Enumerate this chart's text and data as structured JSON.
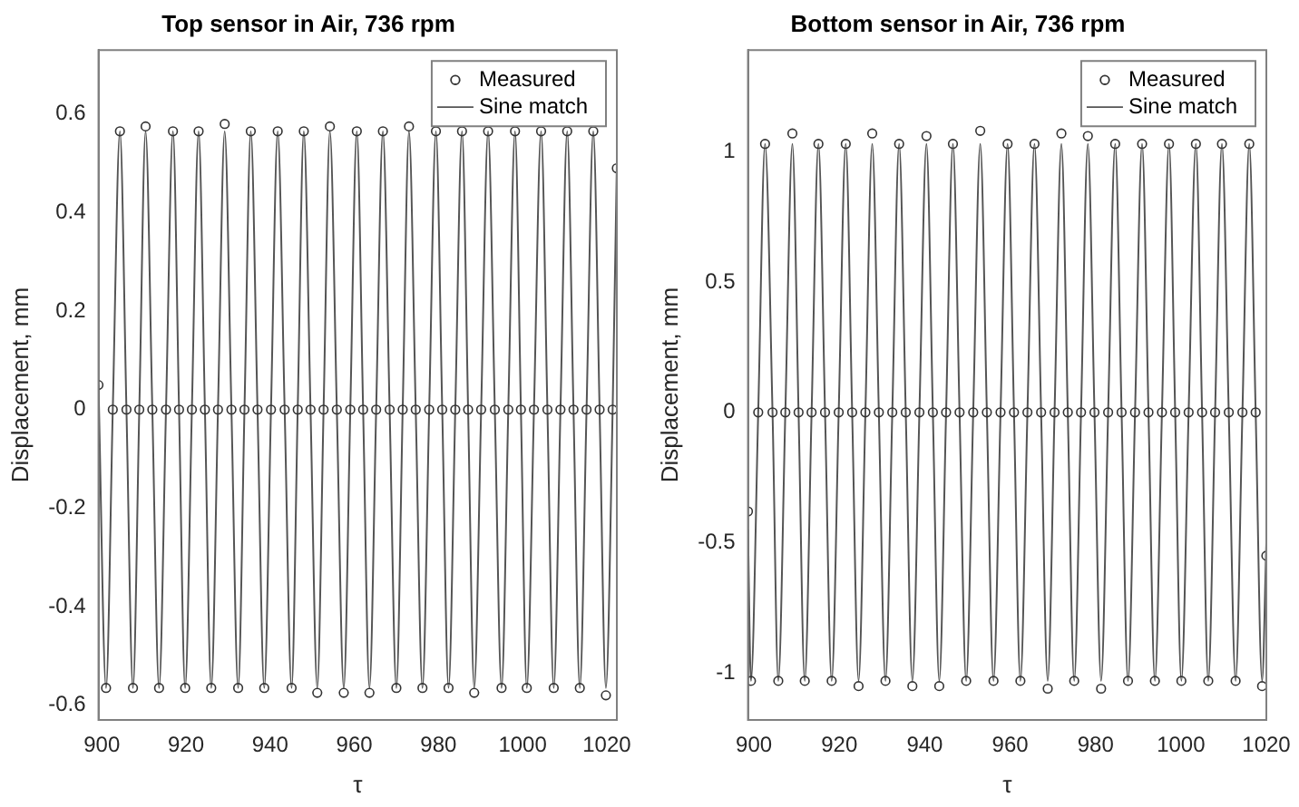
{
  "chart_data": [
    {
      "type": "line",
      "title": "Top sensor in Air, 736 rpm",
      "xlabel": "τ",
      "ylabel": "Displacement, mm",
      "xlim": [
        899.2,
        1022.4
      ],
      "xticks": [
        900,
        920,
        940,
        960,
        980,
        1000,
        1020
      ],
      "ylim": [
        -0.63,
        0.73
      ],
      "yticks": [
        -0.6,
        -0.4,
        -0.2,
        0,
        0.2,
        0.4,
        0.6
      ],
      "grid": false,
      "legend": "top right",
      "x": [
        899.2,
        901.0,
        902.6,
        904.3,
        905.85,
        907.4,
        908.9,
        910.4,
        912.0,
        913.6,
        915.25,
        916.9,
        918.35,
        919.8,
        921.4,
        923.0,
        924.5,
        926.0,
        927.6,
        929.2,
        930.8,
        932.4,
        933.9,
        935.4,
        937.0,
        938.6,
        940.2,
        941.8,
        943.45,
        945.1,
        946.55,
        948.0,
        949.6,
        951.2,
        952.7,
        954.2,
        955.85,
        957.5,
        959.05,
        960.6,
        962.1,
        963.6,
        965.2,
        966.8,
        968.4,
        970.0,
        971.5,
        973.0,
        974.6,
        976.2,
        977.8,
        979.4,
        980.9,
        982.4,
        984.0,
        985.6,
        987.05,
        988.5,
        990.15,
        991.8,
        993.4,
        995.0,
        996.6,
        998.2,
        999.6,
        1001.0,
        1002.7,
        1004.4,
        1005.9,
        1007.4,
        1009.0,
        1010.6,
        1012.1,
        1013.6,
        1015.2,
        1016.8,
        1018.3,
        1019.8,
        1021.4,
        1022.4
      ],
      "series": [
        {
          "name": "Measured",
          "type": "scatter",
          "marker": "circle",
          "color": "#333333",
          "values": [
            0.05,
            -0.565,
            0,
            0.565,
            0,
            -0.565,
            0,
            0.575,
            0,
            -0.565,
            0,
            0.565,
            0,
            -0.565,
            0,
            0.565,
            0,
            -0.565,
            0,
            0.58,
            0,
            -0.565,
            0,
            0.565,
            0,
            -0.565,
            0,
            0.565,
            0,
            -0.565,
            0,
            0.565,
            0,
            -0.575,
            0,
            0.575,
            0,
            -0.575,
            0,
            0.565,
            0,
            -0.575,
            0,
            0.565,
            0,
            -0.565,
            0,
            0.575,
            0,
            -0.565,
            0,
            0.565,
            0,
            -0.565,
            0,
            0.565,
            0,
            -0.575,
            0,
            0.565,
            0,
            -0.565,
            0,
            0.565,
            0,
            -0.565,
            0,
            0.565,
            0,
            -0.565,
            0,
            0.565,
            0,
            -0.565,
            0,
            0.565,
            0,
            -0.58,
            0,
            0.49
          ]
        },
        {
          "name": "Sine match",
          "type": "line",
          "marker": "none",
          "line_style": "solid",
          "color": "#555555",
          "values": [
            0.05,
            -0.565,
            0,
            0.565,
            0,
            -0.565,
            0,
            0.565,
            0,
            -0.565,
            0,
            0.565,
            0,
            -0.565,
            0,
            0.565,
            0,
            -0.565,
            0,
            0.565,
            0,
            -0.565,
            0,
            0.565,
            0,
            -0.565,
            0,
            0.565,
            0,
            -0.565,
            0,
            0.565,
            0,
            -0.565,
            0,
            0.565,
            0,
            -0.565,
            0,
            0.565,
            0,
            -0.565,
            0,
            0.565,
            0,
            -0.565,
            0,
            0.565,
            0,
            -0.565,
            0,
            0.565,
            0,
            -0.565,
            0,
            0.565,
            0,
            -0.565,
            0,
            0.565,
            0,
            -0.565,
            0,
            0.565,
            0,
            -0.565,
            0,
            0.565,
            0,
            -0.565,
            0,
            0.565,
            0,
            -0.565,
            0,
            0.565,
            0,
            -0.565,
            0,
            0.5
          ]
        }
      ]
    },
    {
      "type": "line",
      "title": "Bottom sensor in Air, 736 rpm",
      "xlabel": "τ",
      "ylabel": "Displacement, mm",
      "xlim": [
        898.6,
        1020
      ],
      "xticks": [
        900,
        920,
        940,
        960,
        980,
        1000,
        1020
      ],
      "ylim": [
        -1.18,
        1.39
      ],
      "yticks": [
        -1,
        -0.5,
        0,
        0.5,
        1
      ],
      "grid": false,
      "legend": "top right",
      "x": [
        898.6,
        899.3,
        901.0,
        902.6,
        904.35,
        905.7,
        907.35,
        909.0,
        910.45,
        911.9,
        913.5,
        915.1,
        916.65,
        918.2,
        919.85,
        921.5,
        923.0,
        924.5,
        926.1,
        927.7,
        929.25,
        930.8,
        932.4,
        934.0,
        935.55,
        937.1,
        938.75,
        940.4,
        941.9,
        943.4,
        945.0,
        946.6,
        948.15,
        949.7,
        951.35,
        953.0,
        954.55,
        956.1,
        957.75,
        959.4,
        960.9,
        962.4,
        964.05,
        965.7,
        967.25,
        968.8,
        970.4,
        972.0,
        973.5,
        975.0,
        976.6,
        978.2,
        979.75,
        981.3,
        982.95,
        984.6,
        986.1,
        987.6,
        989.25,
        990.9,
        992.4,
        993.9,
        995.55,
        997.2,
        998.65,
        1000.1,
        1001.8,
        1003.5,
        1004.95,
        1006.4,
        1008.0,
        1009.6,
        1011.2,
        1012.8,
        1014.4,
        1016.0,
        1017.5,
        1019.0,
        1020.0
      ],
      "series": [
        {
          "name": "Measured",
          "type": "scatter",
          "marker": "circle",
          "color": "#333333",
          "values": [
            -0.38,
            -1.03,
            0,
            1.03,
            0,
            -1.03,
            0,
            1.07,
            0,
            -1.03,
            0,
            1.03,
            0,
            -1.03,
            0,
            1.03,
            0,
            -1.05,
            0,
            1.07,
            0,
            -1.03,
            0,
            1.03,
            0,
            -1.05,
            0,
            1.06,
            0,
            -1.05,
            0,
            1.03,
            0,
            -1.03,
            0,
            1.08,
            0,
            -1.03,
            0,
            1.03,
            0,
            -1.03,
            0,
            1.03,
            0,
            -1.06,
            0,
            1.07,
            0,
            -1.03,
            0,
            1.06,
            0,
            -1.06,
            0,
            1.03,
            0,
            -1.03,
            0,
            1.03,
            0,
            -1.03,
            0,
            1.03,
            0,
            -1.03,
            0,
            1.03,
            0,
            -1.03,
            0,
            1.03,
            0,
            -1.03,
            0,
            1.03,
            0,
            -1.05,
            -0.55
          ]
        },
        {
          "name": "Sine match",
          "type": "line",
          "marker": "none",
          "line_style": "solid",
          "color": "#555555",
          "values": [
            -0.45,
            -1.03,
            0,
            1.03,
            0,
            -1.03,
            0,
            1.03,
            0,
            -1.03,
            0,
            1.03,
            0,
            -1.03,
            0,
            1.03,
            0,
            -1.03,
            0,
            1.03,
            0,
            -1.03,
            0,
            1.03,
            0,
            -1.03,
            0,
            1.03,
            0,
            -1.03,
            0,
            1.03,
            0,
            -1.03,
            0,
            1.03,
            0,
            -1.03,
            0,
            1.03,
            0,
            -1.03,
            0,
            1.03,
            0,
            -1.03,
            0,
            1.03,
            0,
            -1.03,
            0,
            1.03,
            0,
            -1.03,
            0,
            1.03,
            0,
            -1.03,
            0,
            1.03,
            0,
            -1.03,
            0,
            1.03,
            0,
            -1.03,
            0,
            1.03,
            0,
            -1.03,
            0,
            1.03,
            0,
            -1.03,
            0,
            1.03,
            0,
            -1.03,
            -0.5
          ]
        }
      ]
    }
  ]
}
